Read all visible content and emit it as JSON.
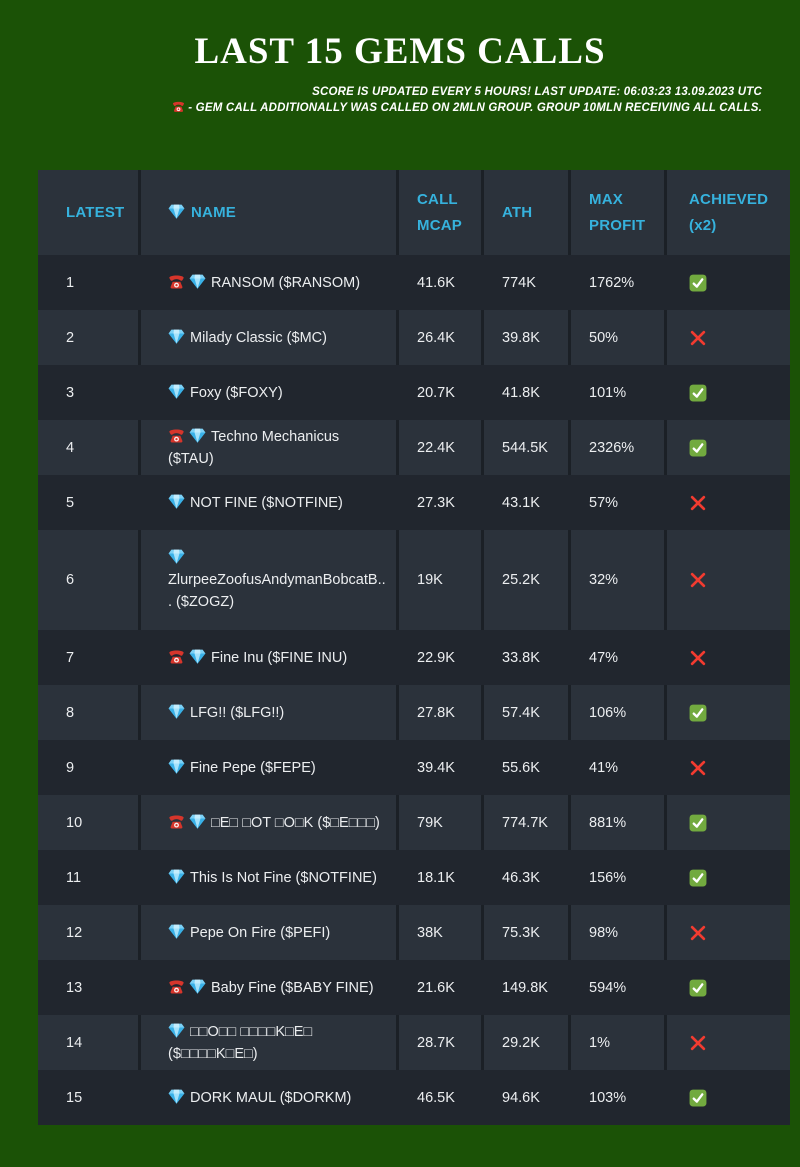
{
  "title": "LAST 15 GEMS CALLS",
  "subtitle_line1": "SCORE IS UPDATED EVERY 5 HOURS! LAST UPDATE: 06:03:23 13.09.2023 UTC",
  "subtitle_line2": "- GEM CALL ADDITIONALLY WAS CALLED ON 2MLN GROUP. GROUP 10MLN RECEIVING ALL CALLS.",
  "colors": {
    "page_background": "#1b5206",
    "dark_row": "#21262e",
    "light_cell": "#2b323b",
    "table_gap": "#1b2026",
    "header_text": "#36b2dd",
    "body_text": "#eceef0",
    "check_green": "#72aa3f",
    "cross_red": "#f23b30",
    "gem_blue": "#7cd1f6",
    "phone_red": "#d6352b"
  },
  "icons": {
    "name_header": "gem-icon",
    "legend": "phone-icon",
    "called_on_2mln": "phone-icon",
    "token": "gem-icon",
    "achieved_true": "check-icon",
    "achieved_false": "cross-icon"
  },
  "table": {
    "headers": {
      "latest": "LATEST",
      "name": "NAME",
      "call_mcap": "CALL MCAP",
      "ath": "ATH",
      "max_profit": "MAX PROFIT",
      "achieved": "ACHIEVED (x2)"
    }
  },
  "chart_data": {
    "type": "table",
    "title": "LAST 15 GEMS CALLS",
    "columns": [
      "LATEST",
      "NAME",
      "CALL MCAP",
      "ATH",
      "MAX PROFIT",
      "ACHIEVED (x2)"
    ],
    "rows": [
      {
        "n": "1",
        "phone": true,
        "name": "RANSOM ($RANSOM)",
        "mcap": "41.6K",
        "ath": "774K",
        "profit": "1762%",
        "achieved": true
      },
      {
        "n": "2",
        "phone": false,
        "name": "Milady Classic ($MC)",
        "mcap": "26.4K",
        "ath": "39.8K",
        "profit": "50%",
        "achieved": false
      },
      {
        "n": "3",
        "phone": false,
        "name": "Foxy ($FOXY)",
        "mcap": "20.7K",
        "ath": "41.8K",
        "profit": "101%",
        "achieved": true
      },
      {
        "n": "4",
        "phone": true,
        "name": "Techno Mechanicus ($TAU)",
        "mcap": "22.4K",
        "ath": "544.5K",
        "profit": "2326%",
        "achieved": true
      },
      {
        "n": "5",
        "phone": false,
        "name": "NOT FINE ($NOTFINE)",
        "mcap": "27.3K",
        "ath": "43.1K",
        "profit": "57%",
        "achieved": false
      },
      {
        "n": "6",
        "phone": false,
        "name": "ZlurpeeZoofusAndymanBobcatB... ($ZOGZ)",
        "mcap": "19K",
        "ath": "25.2K",
        "profit": "32%",
        "achieved": false
      },
      {
        "n": "7",
        "phone": true,
        "name": "Fine Inu ($FINE INU)",
        "mcap": "22.9K",
        "ath": "33.8K",
        "profit": "47%",
        "achieved": false
      },
      {
        "n": "8",
        "phone": false,
        "name": "LFG!! ($LFG!!)",
        "mcap": "27.8K",
        "ath": "57.4K",
        "profit": "106%",
        "achieved": true
      },
      {
        "n": "9",
        "phone": false,
        "name": "Fine Pepe ($FEPE)",
        "mcap": "39.4K",
        "ath": "55.6K",
        "profit": "41%",
        "achieved": false
      },
      {
        "n": "10",
        "phone": true,
        "name": "□E□ □OT □O□K ($□E□□□)",
        "mcap": "79K",
        "ath": "774.7K",
        "profit": "881%",
        "achieved": true
      },
      {
        "n": "11",
        "phone": false,
        "name": "This Is Not Fine ($NOTFINE)",
        "mcap": "18.1K",
        "ath": "46.3K",
        "profit": "156%",
        "achieved": true
      },
      {
        "n": "12",
        "phone": false,
        "name": "Pepe On Fire ($PEFI)",
        "mcap": "38K",
        "ath": "75.3K",
        "profit": "98%",
        "achieved": false
      },
      {
        "n": "13",
        "phone": true,
        "name": "Baby Fine ($BABY FINE)",
        "mcap": "21.6K",
        "ath": "149.8K",
        "profit": "594%",
        "achieved": true
      },
      {
        "n": "14",
        "phone": false,
        "name": "□□O□□ □□□□K□E□ ($□□□□K□E□)",
        "mcap": "28.7K",
        "ath": "29.2K",
        "profit": "1%",
        "achieved": false
      },
      {
        "n": "15",
        "phone": false,
        "name": "DORK MAUL ($DORKM)",
        "mcap": "46.5K",
        "ath": "94.6K",
        "profit": "103%",
        "achieved": true
      }
    ]
  }
}
